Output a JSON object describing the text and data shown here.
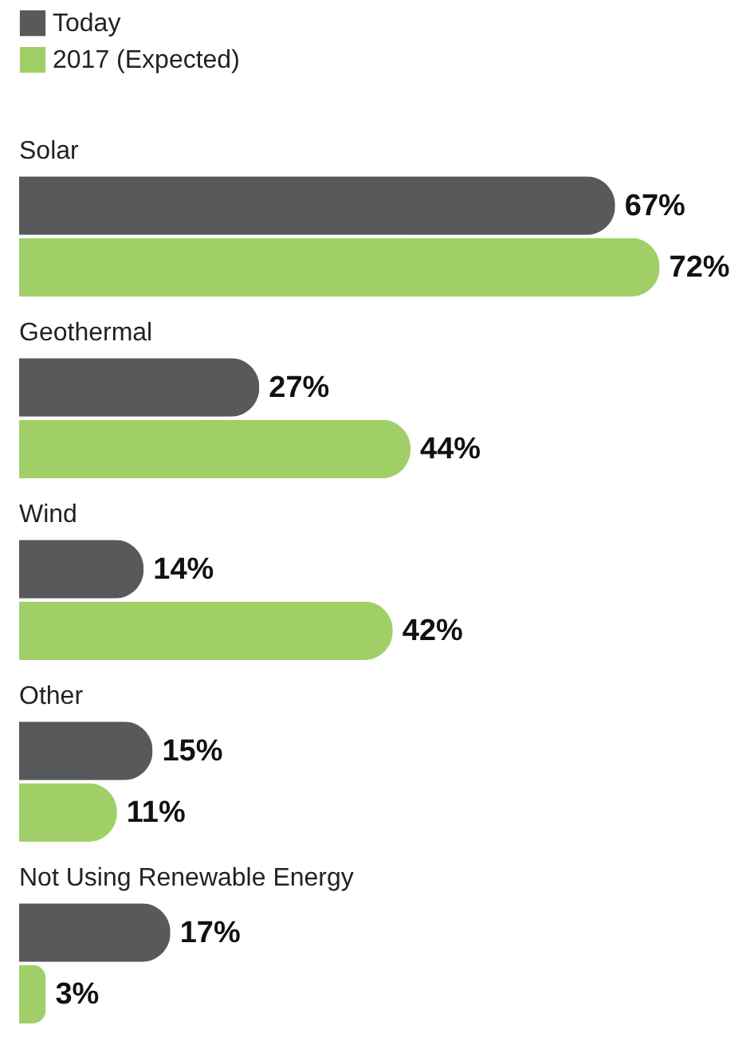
{
  "chart_data": {
    "type": "bar",
    "orientation": "horizontal",
    "categories": [
      "Solar",
      "Geothermal",
      "Wind",
      "Other",
      "Not Using Renewable Energy"
    ],
    "series": [
      {
        "name": "Today",
        "color": "#58595b",
        "values": [
          67,
          27,
          14,
          15,
          17
        ],
        "value_labels": [
          "67%",
          "27%",
          "14%",
          "15%",
          "17%"
        ]
      },
      {
        "name": "2017 (Expected)",
        "color": "#a0cf67",
        "values": [
          72,
          44,
          42,
          11,
          3
        ],
        "value_labels": [
          "72%",
          "44%",
          "42%",
          "11%",
          "3%"
        ]
      }
    ],
    "legend": "top left"
  }
}
